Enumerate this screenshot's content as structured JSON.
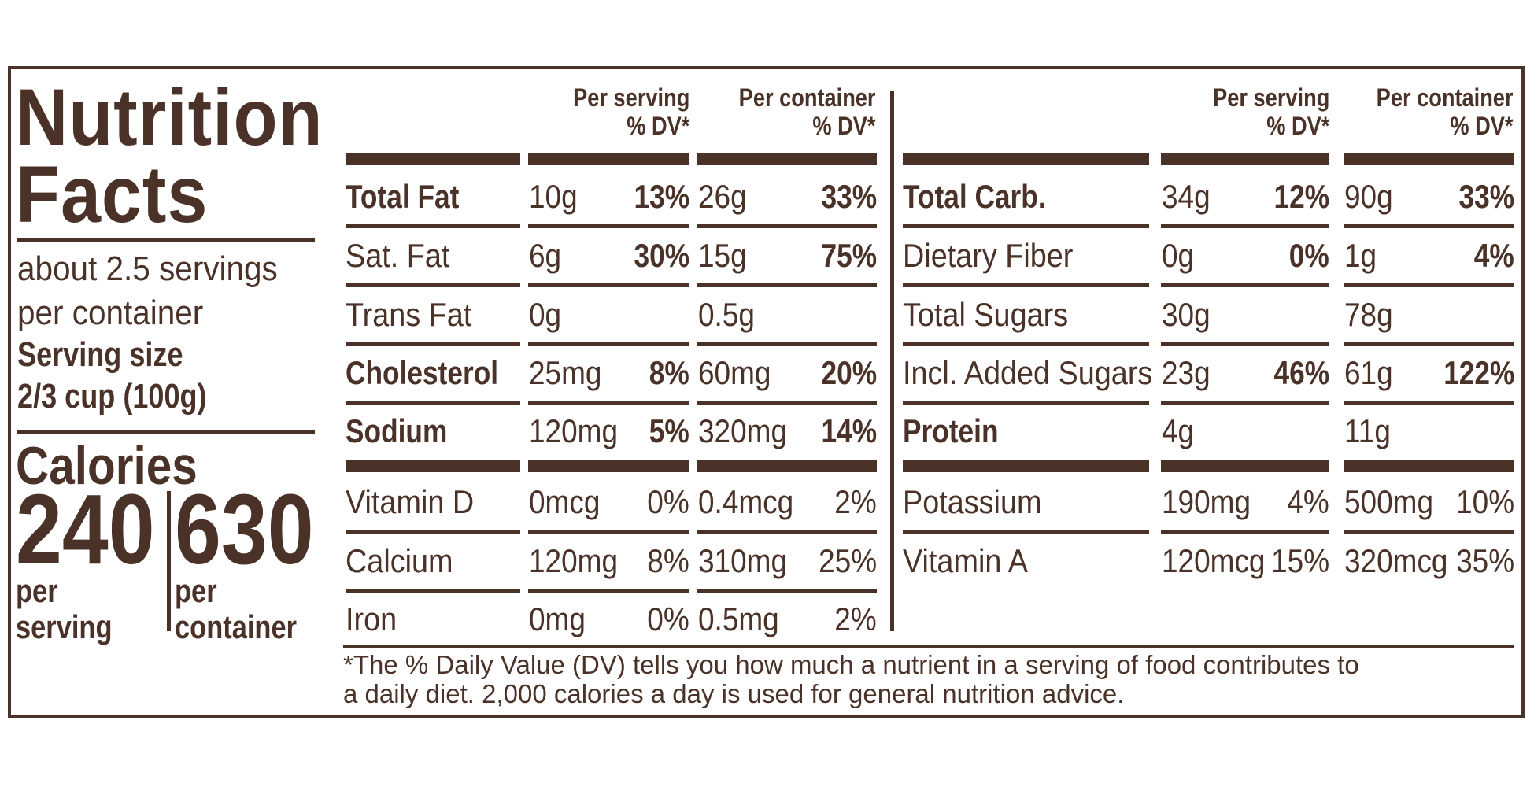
{
  "title": "Nutrition\nFacts",
  "servings": "about 2.5 servings\nper container",
  "serving_size_label": "Serving size",
  "serving_size_value": "2/3 cup (100g)",
  "calories": {
    "label": "Calories",
    "per_serving": "240",
    "per_serving_label": "per\nserving",
    "per_container": "630",
    "per_container_label": "per\ncontainer"
  },
  "headers": {
    "per_serving": "Per serving\n% DV*",
    "per_container": "Per container\n% DV*"
  },
  "left_rows": [
    {
      "name": "Total Fat",
      "s_amt": "10g",
      "s_dv": "13%",
      "c_amt": "26g",
      "c_dv": "33%"
    },
    {
      "name": "Sat. Fat",
      "s_amt": "6g",
      "s_dv": "30%",
      "c_amt": "15g",
      "c_dv": "75%"
    },
    {
      "name": "Trans Fat",
      "s_amt": "0g",
      "s_dv": "",
      "c_amt": "0.5g",
      "c_dv": ""
    },
    {
      "name": "Cholesterol",
      "s_amt": "25mg",
      "s_dv": "8%",
      "c_amt": "60mg",
      "c_dv": "20%"
    },
    {
      "name": "Sodium",
      "s_amt": "120mg",
      "s_dv": "5%",
      "c_amt": "320mg",
      "c_dv": "14%"
    },
    {
      "name": "Vitamin D",
      "s_amt": "0mcg",
      "s_dv": "0%",
      "c_amt": "0.4mcg",
      "c_dv": "2%"
    },
    {
      "name": "Calcium",
      "s_amt": "120mg",
      "s_dv": "8%",
      "c_amt": "310mg",
      "c_dv": "25%"
    },
    {
      "name": "Iron",
      "s_amt": "0mg",
      "s_dv": "0%",
      "c_amt": "0.5mg",
      "c_dv": "2%"
    }
  ],
  "right_rows": [
    {
      "name": "Total Carb.",
      "s_amt": "34g",
      "s_dv": "12%",
      "c_amt": "90g",
      "c_dv": "33%"
    },
    {
      "name": "Dietary Fiber",
      "s_amt": "0g",
      "s_dv": "0%",
      "c_amt": "1g",
      "c_dv": "4%"
    },
    {
      "name": "Total Sugars",
      "s_amt": "30g",
      "s_dv": "",
      "c_amt": "78g",
      "c_dv": ""
    },
    {
      "name": "Incl. Added Sugars",
      "s_amt": "23g",
      "s_dv": "46%",
      "c_amt": "61g",
      "c_dv": "122%"
    },
    {
      "name": "Protein",
      "s_amt": "4g",
      "s_dv": "",
      "c_amt": "11g",
      "c_dv": ""
    },
    {
      "name": "Potassium",
      "s_amt": "190mg",
      "s_dv": "4%",
      "c_amt": "500mg",
      "c_dv": "10%"
    },
    {
      "name": "Vitamin A",
      "s_amt": "120mcg",
      "s_dv": "15%",
      "c_amt": "320mcg",
      "c_dv": "35%"
    }
  ],
  "footnote": "*The % Daily Value (DV) tells you how much a nutrient in a serving of food contributes to\n a daily diet. 2,000 calories a day is used for general nutrition advice.",
  "colors": {
    "ink": "#4a3228",
    "background": "#ffffff"
  }
}
